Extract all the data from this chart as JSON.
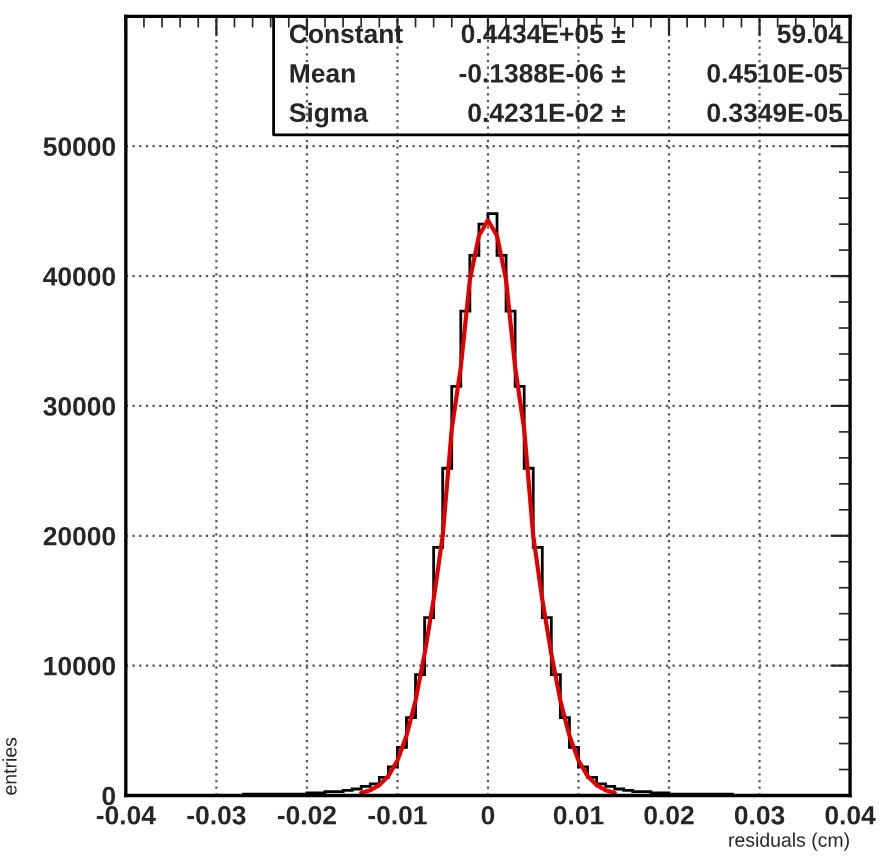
{
  "chart_data": {
    "type": "histogram",
    "xlabel": "residuals (cm)",
    "ylabel": "entries",
    "xlim": [
      -0.04,
      0.04
    ],
    "xticks": [
      -0.04,
      -0.03,
      -0.02,
      -0.01,
      0,
      0.01,
      0.02,
      0.03,
      0.04
    ],
    "ylim": [
      0,
      60000
    ],
    "yticks": [
      0,
      10000,
      20000,
      30000,
      40000,
      50000
    ],
    "grid": true,
    "legend": false,
    "annotations": [
      "Constant",
      "0.4434E+05 ±",
      "59.04",
      "Mean",
      "-0.1388E-06 ±",
      "0.4510E-05",
      "Sigma",
      "0.4231E-02 ±",
      "0.3349E-05"
    ],
    "series": [
      {
        "color": "#000000",
        "bins": [
          -0.04,
          -0.039,
          -0.038,
          -0.037,
          -0.036,
          -0.035,
          -0.034,
          -0.033,
          -0.032,
          -0.031,
          -0.03,
          -0.029,
          -0.028,
          -0.027,
          -0.026,
          -0.025,
          -0.024,
          -0.023,
          -0.022,
          -0.021,
          -0.02,
          -0.019,
          -0.018,
          -0.017,
          -0.016,
          -0.015,
          -0.014,
          -0.013,
          -0.012,
          -0.011,
          -0.01,
          -0.009,
          -0.008,
          -0.007,
          -0.006,
          -0.005,
          -0.004,
          -0.003,
          -0.002,
          -0.001,
          0,
          0.001,
          0.002,
          0.003,
          0.004,
          0.005,
          0.006,
          0.007,
          0.008,
          0.009,
          0.01,
          0.011,
          0.012,
          0.013,
          0.014,
          0.015,
          0.016,
          0.017,
          0.018,
          0.019,
          0.02,
          0.021,
          0.022,
          0.023,
          0.024,
          0.025,
          0.026,
          0.027,
          0.028,
          0.029,
          0.03,
          0.031,
          0.032,
          0.033,
          0.034,
          0.035,
          0.036,
          0.037,
          0.038,
          0.039,
          0.04
        ],
        "values": [
          0,
          0,
          0,
          0,
          0,
          0,
          0,
          0,
          0,
          0,
          0,
          0,
          0,
          100,
          100,
          100,
          100,
          100,
          100,
          100,
          200,
          200,
          300,
          300,
          400,
          500,
          700,
          900,
          1400,
          2200,
          3700,
          6000,
          9300,
          13700,
          19100,
          25200,
          31500,
          37300,
          41600,
          44000,
          44800,
          41600,
          37300,
          31500,
          25200,
          19100,
          13700,
          9300,
          6000,
          3700,
          2200,
          1400,
          900,
          700,
          500,
          400,
          300,
          300,
          200,
          200,
          100,
          100,
          100,
          100,
          100,
          100,
          100,
          0,
          0,
          0,
          0,
          0,
          0,
          0,
          0,
          0,
          0,
          0,
          0,
          0
        ]
      },
      {
        "type": "line",
        "color": "#e00000",
        "x": [
          -0.014,
          -0.013,
          -0.012,
          -0.011,
          -0.01,
          -0.009,
          -0.008,
          -0.007,
          -0.006,
          -0.005,
          -0.004,
          -0.003,
          -0.002,
          -0.001,
          0,
          0.001,
          0.002,
          0.003,
          0.004,
          0.005,
          0.006,
          0.007,
          0.008,
          0.009,
          0.01,
          0.011,
          0.012,
          0.013,
          0.014
        ],
        "values": [
          200,
          400,
          800,
          1500,
          2700,
          4600,
          7300,
          10900,
          15100,
          20000,
          28200,
          33000,
          39700,
          43100,
          44300,
          43100,
          39700,
          33000,
          28200,
          20000,
          15100,
          10900,
          7300,
          4600,
          2700,
          1500,
          800,
          400,
          200
        ]
      }
    ]
  }
}
